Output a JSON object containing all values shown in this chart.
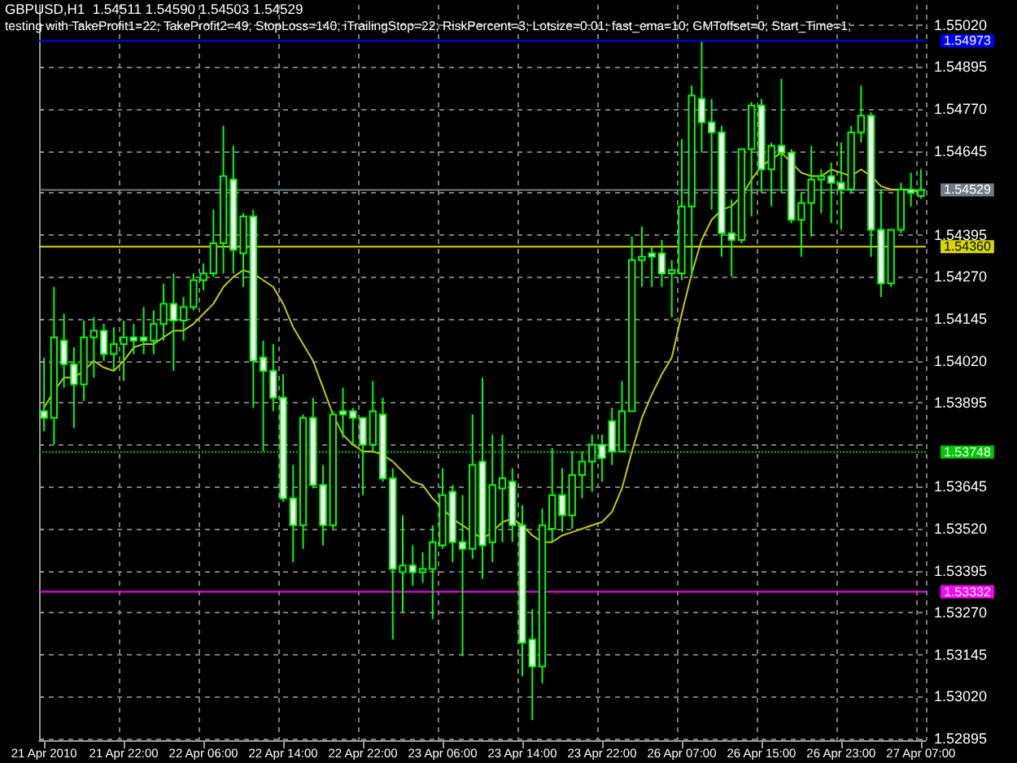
{
  "chart_data": {
    "type": "candlestick",
    "title": "GBPUSD,H1  1.54511 1.54590 1.54503 1.54529",
    "subtitle": "testing with TakeProfit1=22; TakeProfit2=49; StopLoss=140; iTrailingStop=22; RiskPercent=3; Lotsize=0.01; fast_ema=10; GMToffset=0; Start_Time=1;",
    "categories": [
      "21 Apr 2010",
      null,
      null,
      null,
      null,
      null,
      null,
      null,
      "21 Apr 22:00",
      null,
      null,
      null,
      null,
      null,
      null,
      null,
      "22 Apr 06:00",
      null,
      null,
      null,
      null,
      null,
      null,
      null,
      "22 Apr 14:00",
      null,
      null,
      null,
      null,
      null,
      null,
      null,
      "22 Apr 22:00",
      null,
      null,
      null,
      null,
      null,
      null,
      null,
      "23 Apr 06:00",
      null,
      null,
      null,
      null,
      null,
      null,
      null,
      "23 Apr 14:00",
      null,
      null,
      null,
      null,
      null,
      null,
      null,
      "23 Apr 22:00",
      null,
      null,
      null,
      null,
      null,
      null,
      null,
      "26 Apr 07:00",
      null,
      null,
      null,
      null,
      null,
      null,
      null,
      "26 Apr 15:00",
      null,
      null,
      null,
      null,
      null,
      null,
      null,
      "26 Apr 23:00",
      null,
      null,
      null,
      null,
      null,
      null,
      null,
      "27 Apr 07:00"
    ],
    "ohlc": [
      [
        1.5387,
        1.5403,
        1.5381,
        1.5385
      ],
      [
        1.5385,
        1.5424,
        1.5377,
        1.5409
      ],
      [
        1.5408,
        1.5416,
        1.5394,
        1.5401
      ],
      [
        1.5401,
        1.5406,
        1.5382,
        1.5395
      ],
      [
        1.5395,
        1.5414,
        1.539,
        1.5409
      ],
      [
        1.5409,
        1.5415,
        1.5397,
        1.5411
      ],
      [
        1.5411,
        1.5413,
        1.5402,
        1.5404
      ],
      [
        1.5404,
        1.5412,
        1.5399,
        1.5407
      ],
      [
        1.5407,
        1.5414,
        1.5396,
        1.5409
      ],
      [
        1.5409,
        1.5413,
        1.5404,
        1.5408
      ],
      [
        1.5409,
        1.5418,
        1.5404,
        1.5408
      ],
      [
        1.5408,
        1.5417,
        1.5404,
        1.5413
      ],
      [
        1.5413,
        1.5425,
        1.5408,
        1.5419
      ],
      [
        1.5419,
        1.5428,
        1.5399,
        1.5414
      ],
      [
        1.5414,
        1.5421,
        1.5408,
        1.5418
      ],
      [
        1.5418,
        1.5428,
        1.5417,
        1.5426
      ],
      [
        1.5426,
        1.5431,
        1.5423,
        1.5428
      ],
      [
        1.5428,
        1.5447,
        1.5427,
        1.5437
      ],
      [
        1.5437,
        1.5472,
        1.5428,
        1.5457
      ],
      [
        1.5456,
        1.5466,
        1.5428,
        1.5435
      ],
      [
        1.5434,
        1.5446,
        1.5424,
        1.5445
      ],
      [
        1.5445,
        1.5447,
        1.5388,
        1.5402
      ],
      [
        1.5403,
        1.5408,
        1.5375,
        1.5399
      ],
      [
        1.5399,
        1.5407,
        1.5387,
        1.5391
      ],
      [
        1.5391,
        1.5398,
        1.536,
        1.5361
      ],
      [
        1.5361,
        1.5371,
        1.5342,
        1.5353
      ],
      [
        1.5353,
        1.5386,
        1.5346,
        1.5385
      ],
      [
        1.5385,
        1.5391,
        1.5364,
        1.5365
      ],
      [
        1.5365,
        1.5371,
        1.5347,
        1.5353
      ],
      [
        1.5353,
        1.5387,
        1.5352,
        1.5386
      ],
      [
        1.5387,
        1.5394,
        1.5379,
        1.5386
      ],
      [
        1.5387,
        1.5388,
        1.5377,
        1.5385
      ],
      [
        1.5385,
        1.5385,
        1.5362,
        1.5377
      ],
      [
        1.5377,
        1.5396,
        1.5375,
        1.5387
      ],
      [
        1.5386,
        1.5391,
        1.5366,
        1.5367
      ],
      [
        1.5367,
        1.537,
        1.5319,
        1.534
      ],
      [
        1.5339,
        1.5356,
        1.5327,
        1.5341
      ],
      [
        1.5341,
        1.5347,
        1.5335,
        1.5339
      ],
      [
        1.5339,
        1.5345,
        1.5336,
        1.534
      ],
      [
        1.534,
        1.5353,
        1.5325,
        1.5348
      ],
      [
        1.5347,
        1.537,
        1.5346,
        1.5362
      ],
      [
        1.5363,
        1.5365,
        1.5342,
        1.5348
      ],
      [
        1.5348,
        1.5362,
        1.5314,
        1.5346
      ],
      [
        1.5346,
        1.5386,
        1.5343,
        1.5371
      ],
      [
        1.5372,
        1.5397,
        1.5337,
        1.5347
      ],
      [
        1.5348,
        1.538,
        1.5342,
        1.5365
      ],
      [
        1.5364,
        1.538,
        1.5348,
        1.5367
      ],
      [
        1.5366,
        1.537,
        1.5348,
        1.5353
      ],
      [
        1.5353,
        1.5359,
        1.5308,
        1.5318
      ],
      [
        1.5319,
        1.5328,
        1.5295,
        1.5311
      ],
      [
        1.5311,
        1.5358,
        1.5306,
        1.5353
      ],
      [
        1.5352,
        1.5376,
        1.5348,
        1.5362
      ],
      [
        1.5362,
        1.537,
        1.5351,
        1.5356
      ],
      [
        1.5356,
        1.5375,
        1.5352,
        1.5368
      ],
      [
        1.5368,
        1.5375,
        1.5361,
        1.5372
      ],
      [
        1.5372,
        1.538,
        1.5363,
        1.5377
      ],
      [
        1.5377,
        1.538,
        1.5366,
        1.5373
      ],
      [
        1.5384,
        1.5388,
        1.5371,
        1.5375
      ],
      [
        1.5375,
        1.5396,
        1.5375,
        1.5387
      ],
      [
        1.5387,
        1.5439,
        1.5387,
        1.5432
      ],
      [
        1.5432,
        1.5442,
        1.5424,
        1.5433
      ],
      [
        1.5434,
        1.5436,
        1.5424,
        1.5433
      ],
      [
        1.5434,
        1.5438,
        1.5424,
        1.5428
      ],
      [
        1.5428,
        1.5432,
        1.5415,
        1.5429
      ],
      [
        1.5428,
        1.5468,
        1.5426,
        1.5448
      ],
      [
        1.5448,
        1.5484,
        1.5427,
        1.5481
      ],
      [
        1.548,
        1.5497,
        1.5464,
        1.5473
      ],
      [
        1.5473,
        1.548,
        1.5447,
        1.547
      ],
      [
        1.547,
        1.5472,
        1.5433,
        1.544
      ],
      [
        1.544,
        1.545,
        1.5427,
        1.5438
      ],
      [
        1.5438,
        1.5465,
        1.5437,
        1.5465
      ],
      [
        1.5465,
        1.5479,
        1.5445,
        1.5478
      ],
      [
        1.5478,
        1.548,
        1.5452,
        1.5459
      ],
      [
        1.5459,
        1.5467,
        1.5448,
        1.5466
      ],
      [
        1.5466,
        1.5486,
        1.5452,
        1.5464
      ],
      [
        1.5464,
        1.5465,
        1.5443,
        1.5444
      ],
      [
        1.5444,
        1.5452,
        1.5433,
        1.5449
      ],
      [
        1.5449,
        1.5466,
        1.5439,
        1.5456
      ],
      [
        1.5456,
        1.5459,
        1.5446,
        1.5457
      ],
      [
        1.5457,
        1.5461,
        1.5443,
        1.5455
      ],
      [
        1.5455,
        1.5467,
        1.5441,
        1.5453
      ],
      [
        1.5453,
        1.5472,
        1.5452,
        1.547
      ],
      [
        1.547,
        1.5484,
        1.5467,
        1.5475
      ],
      [
        1.5475,
        1.5476,
        1.5433,
        1.5441
      ],
      [
        1.5441,
        1.5453,
        1.5421,
        1.5425
      ],
      [
        1.5425,
        1.5441,
        1.5424,
        1.5441
      ],
      [
        1.5441,
        1.5455,
        1.544,
        1.5453
      ],
      [
        1.5453,
        1.5458,
        1.5448,
        1.5452
      ],
      [
        1.54511,
        1.5459,
        1.54503,
        1.54529
      ]
    ],
    "series": [
      {
        "type": "line",
        "color": "#c8c800",
        "values": [
          1.5388,
          1.5393,
          1.5397,
          1.5397,
          1.5399,
          1.5402,
          1.54,
          1.5399,
          1.5402,
          1.5406,
          1.5407,
          1.5407,
          1.5409,
          1.5411,
          1.5411,
          1.5413,
          1.5416,
          1.5419,
          1.5424,
          1.5427,
          1.5429,
          1.5428,
          1.5426,
          1.5424,
          1.5419,
          1.5412,
          1.5407,
          1.5402,
          1.5394,
          1.5386,
          1.538,
          1.5377,
          1.5375,
          1.5375,
          1.5374,
          1.5372,
          1.5369,
          1.5366,
          1.5365,
          1.5361,
          1.5358,
          1.5355,
          1.5353,
          1.5351,
          1.5349,
          1.5351,
          1.5354,
          1.5355,
          1.5353,
          1.535,
          1.5348,
          1.5348,
          1.535,
          1.5351,
          1.5352,
          1.5353,
          1.5354,
          1.5357,
          1.5364,
          1.5375,
          1.5385,
          1.5392,
          1.5398,
          1.5403,
          1.5416,
          1.5428,
          1.5438,
          1.5444,
          1.5447,
          1.5448,
          1.5451,
          1.5456,
          1.546,
          1.5462,
          1.5464,
          1.5461,
          1.5458,
          1.5457,
          1.5457,
          1.5459,
          1.5458,
          1.5457,
          1.5459,
          1.5457,
          1.5454,
          1.5453,
          1.5453,
          1.5453,
          1.5452
        ]
      }
    ],
    "ylim": [
      1.5289,
      1.5508
    ],
    "yticks": [
      1.52895,
      {
        "value": 1.5302,
        "label": "1.53020"
      },
      1.53145,
      {
        "value": 1.5327,
        "label": "1.53270"
      },
      1.53395,
      {
        "value": 1.5352,
        "label": "1.53520"
      },
      1.53645,
      {
        "value": 1.5377,
        "label": null
      },
      1.53895,
      {
        "value": 1.5402,
        "label": "1.54020"
      },
      1.54145,
      {
        "value": 1.5427,
        "label": "1.54270"
      },
      1.54395,
      {
        "value": 1.5452,
        "label": null
      },
      1.54645,
      {
        "value": 1.5477,
        "label": "1.54770"
      },
      1.54895,
      {
        "value": 1.5502,
        "label": "1.55020"
      }
    ],
    "ref_lines": [
      {
        "axis": "y",
        "value": 1.54973,
        "label": "1.54973",
        "color": "#0000ff"
      },
      {
        "axis": "y",
        "value": 1.54529,
        "label": "1.54529",
        "color": "#6e7c84"
      },
      {
        "axis": "y",
        "value": 1.5436,
        "label": "1.54360",
        "color": "#d8d800"
      },
      {
        "axis": "y",
        "value": 1.53748,
        "label": "1.53748",
        "color": "#00c800",
        "line_style": "dotted"
      },
      {
        "axis": "y",
        "value": 1.53332,
        "label": "1.53332",
        "color": "#ff00ff"
      }
    ],
    "grid": true
  }
}
